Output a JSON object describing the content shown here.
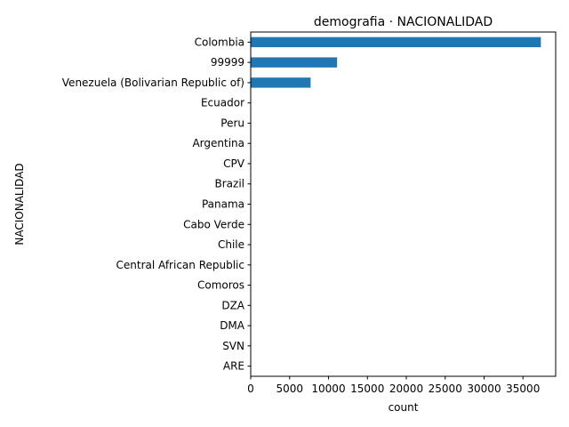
{
  "chart_data": {
    "type": "bar",
    "orientation": "horizontal",
    "title": "demografia · NACIONALIDAD",
    "xlabel": "count",
    "ylabel": "NACIONALIDAD",
    "categories": [
      "Colombia",
      "99999",
      "Venezuela (Bolivarian Republic of)",
      "Ecuador",
      "Peru",
      "Argentina",
      "CPV",
      "Brazil",
      "Panama",
      "Cabo Verde",
      "Chile",
      "Central African Republic",
      "Comoros",
      "DZA",
      "DMA",
      "SVN",
      "ARE"
    ],
    "values": [
      37300,
      11100,
      7700,
      40,
      30,
      20,
      15,
      12,
      10,
      8,
      7,
      6,
      5,
      4,
      3,
      2,
      1
    ],
    "xlim": [
      0,
      39200
    ],
    "xticks": [
      0,
      5000,
      10000,
      15000,
      20000,
      25000,
      30000,
      35000
    ],
    "grid": false,
    "legend": "none",
    "bar_color": "#1f77b4"
  }
}
